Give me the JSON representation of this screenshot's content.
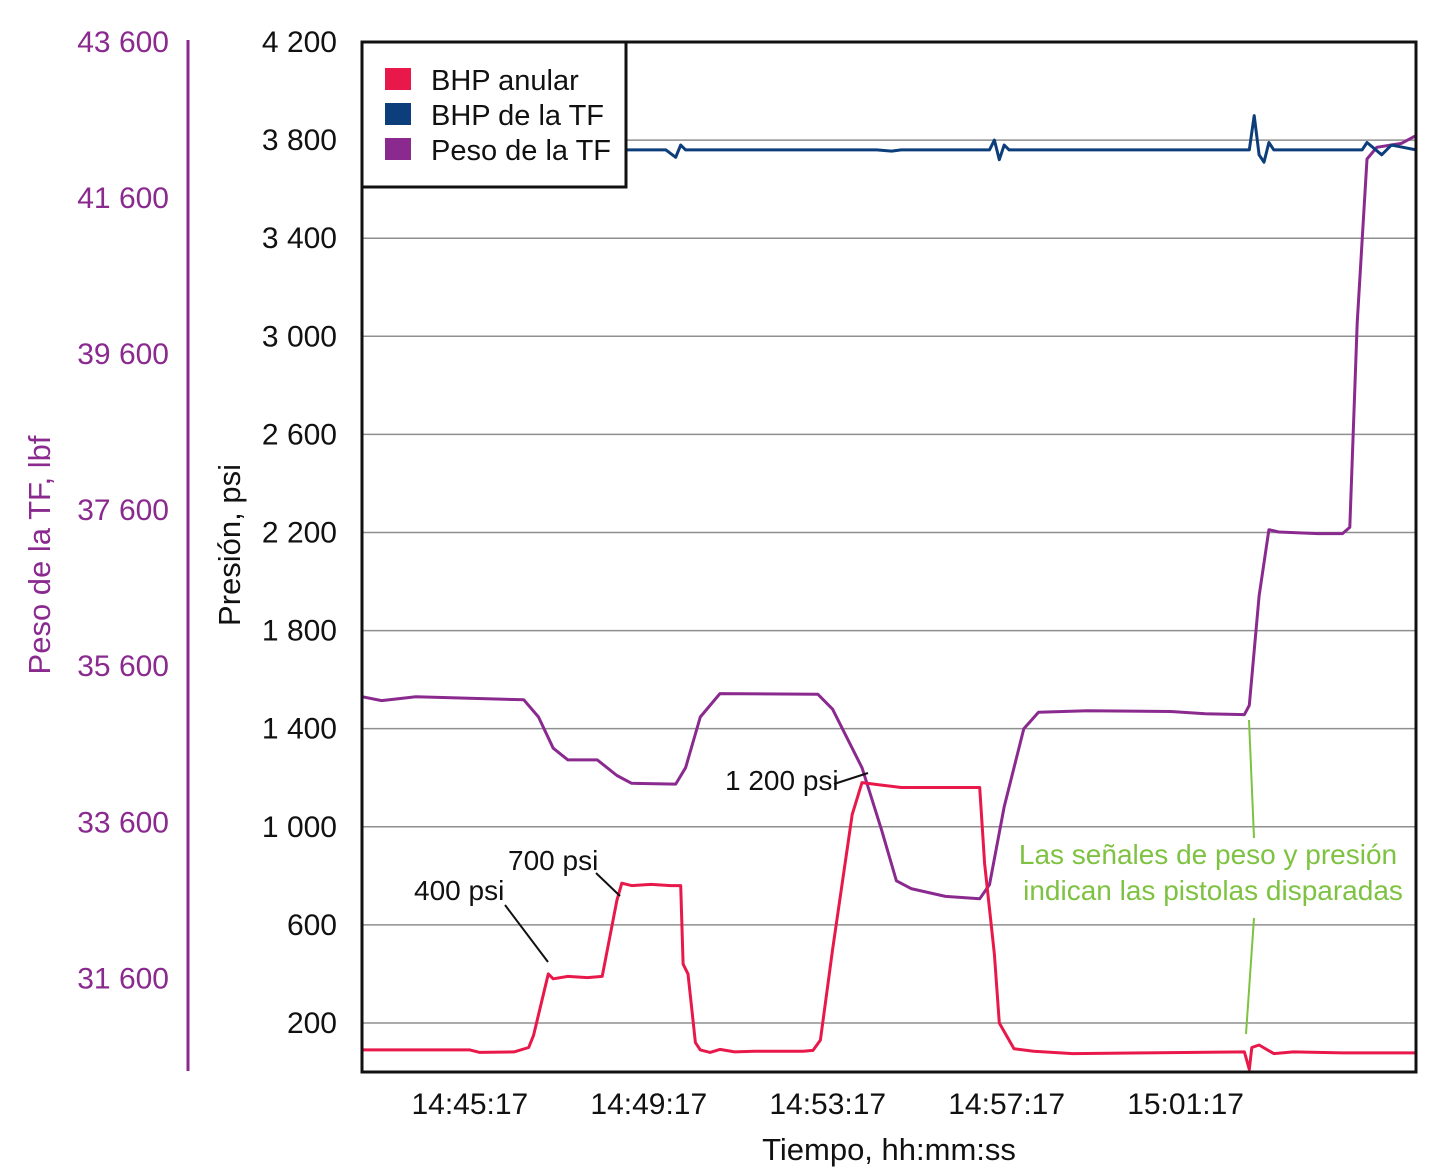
{
  "chart_data": {
    "type": "line",
    "title": "",
    "xlabel": "Tiempo, hh:mm:ss",
    "ylabel": "Presión, psi",
    "y2label": "Peso de la TF, lbf",
    "x_ticks": [
      "14:45:17",
      "14:49:17",
      "14:53:17",
      "14:57:17",
      "15:01:17"
    ],
    "y_ticks": [
      "200",
      "600",
      "1 000",
      "1 400",
      "1 800",
      "2 200",
      "2 600",
      "3 000",
      "3 400",
      "3 800",
      "4 200"
    ],
    "y2_ticks": [
      "31 600",
      "33 600",
      "35 600",
      "37 600",
      "39 600",
      "41 600",
      "43 600"
    ],
    "ylim": [
      0,
      4200
    ],
    "y2lim": [
      30400,
      43600
    ],
    "xlim_minutes": [
      0,
      21.5
    ],
    "grid": true,
    "legend_position": "top-left",
    "colors": {
      "bhp_anular": "#e8194a",
      "bhp_tf": "#0d3e7c",
      "peso_tf": "#8a2a8f",
      "note": "#7ec242"
    },
    "series": [
      {
        "name": "BHP anular",
        "key": "bhp_anular",
        "axis": "left",
        "points": [
          [
            0,
            90
          ],
          [
            2.2,
            90
          ],
          [
            2.4,
            80
          ],
          [
            3.1,
            82
          ],
          [
            3.4,
            100
          ],
          [
            3.5,
            150
          ],
          [
            3.8,
            400
          ],
          [
            3.9,
            380
          ],
          [
            4.2,
            390
          ],
          [
            4.6,
            385
          ],
          [
            4.9,
            390
          ],
          [
            5.2,
            700
          ],
          [
            5.3,
            770
          ],
          [
            5.5,
            760
          ],
          [
            5.9,
            765
          ],
          [
            6.3,
            760
          ],
          [
            6.5,
            760
          ],
          [
            6.55,
            440
          ],
          [
            6.65,
            400
          ],
          [
            6.8,
            120
          ],
          [
            6.9,
            90
          ],
          [
            7.1,
            80
          ],
          [
            7.3,
            92
          ],
          [
            7.6,
            82
          ],
          [
            8.0,
            85
          ],
          [
            9.0,
            85
          ],
          [
            9.2,
            88
          ],
          [
            9.35,
            130
          ],
          [
            9.6,
            500
          ],
          [
            10.0,
            1050
          ],
          [
            10.2,
            1180
          ],
          [
            10.6,
            1170
          ],
          [
            11.0,
            1160
          ],
          [
            12.4,
            1160
          ],
          [
            12.6,
            1160
          ],
          [
            12.7,
            850
          ],
          [
            12.9,
            480
          ],
          [
            13.0,
            200
          ],
          [
            13.3,
            95
          ],
          [
            13.7,
            85
          ],
          [
            14.5,
            75
          ],
          [
            16,
            78
          ],
          [
            18,
            82
          ],
          [
            18.1,
            10
          ],
          [
            18.15,
            100
          ],
          [
            18.3,
            110
          ],
          [
            18.6,
            75
          ],
          [
            19,
            82
          ],
          [
            20,
            78
          ],
          [
            21.5,
            78
          ]
        ]
      },
      {
        "name": "BHP de la TF",
        "key": "bhp_tf",
        "axis": "left",
        "points": [
          [
            0,
            3760
          ],
          [
            6.2,
            3760
          ],
          [
            6.4,
            3730
          ],
          [
            6.5,
            3780
          ],
          [
            6.6,
            3760
          ],
          [
            7.2,
            3760
          ],
          [
            10.5,
            3760
          ],
          [
            10.8,
            3755
          ],
          [
            11,
            3760
          ],
          [
            12.8,
            3760
          ],
          [
            12.9,
            3800
          ],
          [
            13.0,
            3720
          ],
          [
            13.1,
            3780
          ],
          [
            13.2,
            3760
          ],
          [
            18.1,
            3760
          ],
          [
            18.2,
            3900
          ],
          [
            18.3,
            3740
          ],
          [
            18.4,
            3710
          ],
          [
            18.5,
            3790
          ],
          [
            18.6,
            3760
          ],
          [
            20.4,
            3760
          ],
          [
            20.5,
            3790
          ],
          [
            20.8,
            3740
          ],
          [
            21.0,
            3780
          ],
          [
            21.5,
            3760
          ]
        ]
      },
      {
        "name": "Peso de la TF",
        "key": "peso_tf",
        "axis": "right",
        "points": [
          [
            0,
            35210
          ],
          [
            0.4,
            35160
          ],
          [
            1.1,
            35210
          ],
          [
            3.3,
            35170
          ],
          [
            3.6,
            34950
          ],
          [
            3.9,
            34550
          ],
          [
            4.2,
            34400
          ],
          [
            4.8,
            34400
          ],
          [
            5.2,
            34200
          ],
          [
            5.5,
            34100
          ],
          [
            6.4,
            34090
          ],
          [
            6.6,
            34300
          ],
          [
            6.9,
            34950
          ],
          [
            7.3,
            35250
          ],
          [
            9.3,
            35240
          ],
          [
            9.6,
            35050
          ],
          [
            10.2,
            34300
          ],
          [
            10.6,
            33500
          ],
          [
            10.9,
            32850
          ],
          [
            11.2,
            32750
          ],
          [
            11.9,
            32650
          ],
          [
            12.6,
            32620
          ],
          [
            12.8,
            32800
          ],
          [
            13.1,
            33800
          ],
          [
            13.5,
            34800
          ],
          [
            13.8,
            35010
          ],
          [
            14.8,
            35030
          ],
          [
            16.5,
            35020
          ],
          [
            17.2,
            34990
          ],
          [
            18.0,
            34980
          ],
          [
            18.1,
            35100
          ],
          [
            18.3,
            36500
          ],
          [
            18.5,
            37350
          ],
          [
            18.7,
            37320
          ],
          [
            19.5,
            37300
          ],
          [
            20.0,
            37300
          ],
          [
            20.15,
            37380
          ],
          [
            20.3,
            40000
          ],
          [
            20.5,
            42100
          ],
          [
            20.7,
            42250
          ],
          [
            21.2,
            42300
          ],
          [
            21.5,
            42400
          ]
        ]
      }
    ],
    "annotations": [
      {
        "text": "400 psi",
        "x": 3.85,
        "y": 400
      },
      {
        "text": "700 psi",
        "x": 5.3,
        "y": 760
      },
      {
        "text": "1 200 psi",
        "x": 10.3,
        "y": 1190
      }
    ],
    "note": {
      "line1": "Las señales de peso y presión",
      "line2": "indican las pistolas disparadas"
    }
  }
}
